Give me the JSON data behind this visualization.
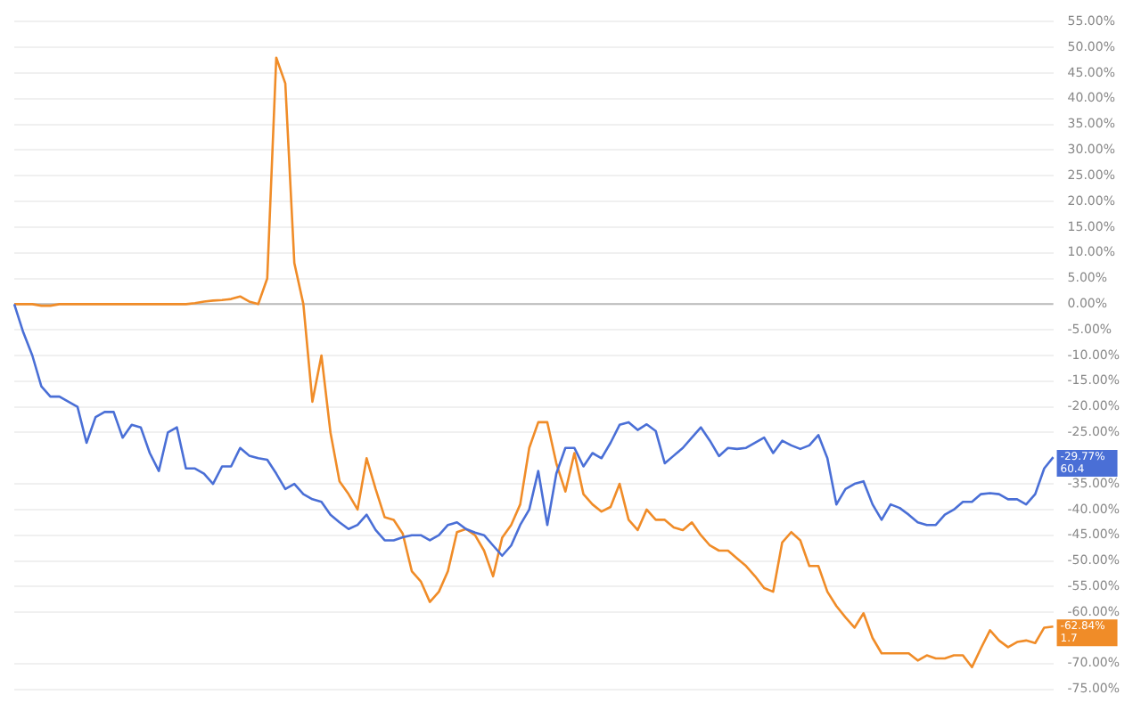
{
  "chart_data": {
    "type": "line",
    "categories": [
      null,
      null,
      null,
      null,
      null,
      null,
      null,
      null,
      null,
      null,
      null,
      null,
      null,
      null,
      null,
      null,
      null,
      null,
      null,
      null,
      null,
      null,
      null,
      null,
      null,
      null,
      null,
      null,
      null,
      null,
      null,
      null,
      null,
      null,
      null,
      null,
      null,
      null,
      null,
      null,
      null,
      null,
      null,
      null,
      null,
      null,
      null,
      null,
      null,
      null,
      null,
      null,
      null,
      null,
      null,
      null,
      null,
      null,
      null,
      null,
      null,
      null,
      null,
      null,
      null,
      null,
      null,
      null,
      null,
      null,
      null,
      null,
      null,
      null,
      null,
      null,
      null,
      null,
      null,
      null,
      null,
      null,
      null,
      null,
      null,
      null,
      null,
      null,
      null,
      null,
      null,
      null,
      null,
      null,
      null,
      null,
      null,
      null,
      null,
      null,
      null,
      null,
      null,
      null,
      null,
      null,
      null,
      null,
      null,
      null,
      null,
      null,
      null,
      null,
      null,
      null
    ],
    "series": [
      {
        "color": "#4a6fd6",
        "values": [
          0,
          -5.5,
          -10,
          -16,
          -18,
          -18,
          -19,
          -20,
          -27,
          -22,
          -21,
          -21,
          -26,
          -23.5,
          -24,
          -29,
          -32.5,
          -25,
          -24,
          -32,
          -32,
          -33,
          -35,
          -31.6,
          -31.6,
          -28,
          -29.5,
          -30,
          -30.3,
          -33,
          -36,
          -35,
          -37,
          -38,
          -38.5,
          -41,
          -42.5,
          -43.8,
          -43,
          -41,
          -44,
          -46,
          -46,
          -45.4,
          -45,
          -45,
          -46,
          -45,
          -43,
          -42.5,
          -43.8,
          -44.5,
          -45,
          -47,
          -49,
          -47,
          -43,
          -40,
          -32.5,
          -43,
          -33,
          -28,
          -28,
          -31.6,
          -29,
          -30,
          -27,
          -23.5,
          -23,
          -24.5,
          -23.4,
          -24.7,
          -31,
          -29.5,
          -28,
          -26,
          -24,
          -26.6,
          -29.6,
          -28,
          -28.2,
          -28,
          -27,
          -26,
          -29,
          -26.6,
          -27.5,
          -28.2,
          -27.5,
          -25.5,
          -30,
          -39,
          -36,
          -35,
          -34.5,
          -39,
          -42,
          -39,
          -39.7,
          -41,
          -42.5,
          -43,
          -43,
          -41,
          -40,
          -38.5,
          -38.5,
          -37,
          -36.8,
          -37,
          -38,
          -38,
          -39,
          -37,
          -32,
          -29.8
        ]
      },
      {
        "color": "#f08c28",
        "values": [
          0,
          0,
          0,
          -0.3,
          -0.3,
          0,
          0,
          0,
          0,
          0,
          0,
          0,
          0,
          0,
          0,
          0,
          0,
          0,
          0,
          0,
          0.2,
          0.5,
          0.7,
          0.8,
          1,
          1.5,
          0.5,
          0,
          5,
          48,
          43,
          8,
          0,
          -19,
          -10,
          -25,
          -34.5,
          -37,
          -40,
          -30,
          -36,
          -41.5,
          -42,
          -44.7,
          -52,
          -54,
          -58,
          -56,
          -52,
          -44.4,
          -43.8,
          -45,
          -48,
          -53,
          -45.5,
          -43,
          -39,
          -28,
          -23,
          -23,
          -31,
          -36.5,
          -29,
          -37,
          -39,
          -40.4,
          -39.5,
          -35,
          -42,
          -44,
          -40,
          -42,
          -42,
          -43.5,
          -44,
          -42.5,
          -45,
          -47,
          -48,
          -48,
          -49.5,
          -51,
          -53,
          -55.3,
          -56,
          -46.4,
          -44.4,
          -46,
          -51,
          -51,
          -56,
          -58.8,
          -61,
          -63,
          -60.2,
          -65,
          -68,
          -68,
          -68,
          -68,
          -69.4,
          -68.4,
          -69,
          -69,
          -68.4,
          -68.4,
          -70.7,
          -67,
          -63.5,
          -65.5,
          -66.8,
          -65.8,
          -65.5,
          -66,
          -63,
          -62.8
        ]
      }
    ],
    "ylim": [
      -75,
      55
    ],
    "yticks": [
      {
        "value": -75,
        "label": "-75.00%"
      },
      {
        "value": -70,
        "label": "-70.00%"
      },
      {
        "value": -60,
        "label": "-60.00%"
      },
      {
        "value": -55,
        "label": "-55.00%"
      },
      {
        "value": -50,
        "label": "-50.00%"
      },
      {
        "value": -45,
        "label": "-45.00%"
      },
      {
        "value": -40,
        "label": "-40.00%"
      },
      {
        "value": -35,
        "label": "-35.00%"
      },
      {
        "value": -25,
        "label": "-25.00%"
      },
      {
        "value": -20,
        "label": "-20.00%"
      },
      {
        "value": -15,
        "label": "-15.00%"
      },
      {
        "value": -10,
        "label": "-10.00%"
      },
      {
        "value": -5,
        "label": "-5.00%"
      },
      {
        "value": 0,
        "label": "0.00%"
      },
      {
        "value": 5,
        "label": "5.00%"
      },
      {
        "value": 10,
        "label": "10.00%"
      },
      {
        "value": 15,
        "label": "15.00%"
      },
      {
        "value": 20,
        "label": "20.00%"
      },
      {
        "value": 25,
        "label": "25.00%"
      },
      {
        "value": 30,
        "label": "30.00%"
      },
      {
        "value": 35,
        "label": "35.00%"
      },
      {
        "value": 40,
        "label": "40.00%"
      },
      {
        "value": 45,
        "label": "45.00%"
      },
      {
        "value": 50,
        "label": "50.00%"
      },
      {
        "value": 55,
        "label": "55.00%"
      }
    ],
    "grid": "y",
    "tick_labels": "y",
    "marker": "none",
    "line_style": "solid",
    "legend": false,
    "ref_lines": [
      {
        "axis": "y",
        "value": 0,
        "color": "#bbbbbb"
      }
    ],
    "annotations": [
      "-29.77%",
      "60.4",
      "-62.84%",
      "1.7"
    ]
  }
}
